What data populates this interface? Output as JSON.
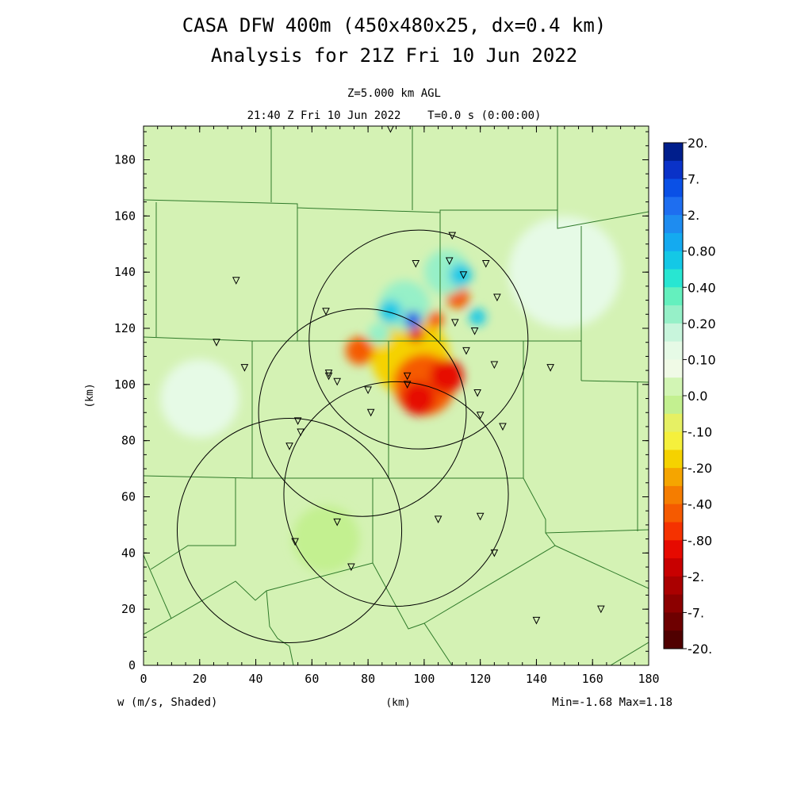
{
  "title": {
    "line1": "CASA DFW 400m (450x480x25, dx=0.4 km)",
    "line2": "Analysis for 21Z Fri 10 Jun 2022"
  },
  "subtitle": {
    "level": "Z=5.000 km AGL",
    "time": "21:40 Z Fri 10 Jun 2022    T=0.0 s (0:00:00)"
  },
  "axes": {
    "x_ticks": [
      "0",
      "20",
      "40",
      "60",
      "80",
      "100",
      "120",
      "140",
      "160",
      "180"
    ],
    "y_ticks": [
      "0",
      "20",
      "40",
      "60",
      "80",
      "100",
      "120",
      "140",
      "160",
      "180"
    ],
    "x_unit": "(km)",
    "y_unit": "(km)",
    "xlim": [
      0,
      180
    ],
    "ylim": [
      0,
      192
    ]
  },
  "footer": {
    "variable": "w (m/s, Shaded)",
    "minmax": "Min=-1.68 Max=1.18"
  },
  "colorbar": {
    "labels": [
      "20.",
      "7.",
      "2.",
      "0.80",
      "0.40",
      "0.20",
      "0.10",
      "0.0",
      "-.10",
      "-.20",
      "-.40",
      "-.80",
      "-2.",
      "-7.",
      "-20."
    ],
    "colors": [
      "#001e8c",
      "#0a32c8",
      "#0a50e6",
      "#1e6ef0",
      "#1e8cf0",
      "#14aaf0",
      "#14c8e6",
      "#28e6d2",
      "#64f0be",
      "#96f0c8",
      "#c8f5dc",
      "#e6fae6",
      "#f0fae6",
      "#d2f5b4",
      "#c3f090",
      "#e6f064",
      "#f5f03c",
      "#f5d200",
      "#f5a500",
      "#f57d00",
      "#f55a00",
      "#f53200",
      "#e60a00",
      "#c80000",
      "#aa0000",
      "#8c0000",
      "#6e0000",
      "#500000"
    ],
    "background_color": "#d4f2b4"
  },
  "radar_circles": [
    {
      "cx": 78,
      "cy": 90,
      "r": 37
    },
    {
      "cx": 98,
      "cy": 116,
      "r": 39
    },
    {
      "cx": 90,
      "cy": 61,
      "r": 40
    },
    {
      "cx": 52,
      "cy": 48,
      "r": 40
    }
  ],
  "stations": [
    [
      88,
      191
    ],
    [
      110,
      153
    ],
    [
      97,
      143
    ],
    [
      109,
      144
    ],
    [
      114,
      139
    ],
    [
      122,
      143
    ],
    [
      126,
      131
    ],
    [
      33,
      137
    ],
    [
      65,
      126
    ],
    [
      111,
      122
    ],
    [
      118,
      119
    ],
    [
      26,
      115
    ],
    [
      115,
      112
    ],
    [
      125,
      107
    ],
    [
      145,
      106
    ],
    [
      36,
      106
    ],
    [
      66,
      104
    ],
    [
      66,
      103
    ],
    [
      69,
      101
    ],
    [
      94,
      103
    ],
    [
      94,
      100
    ],
    [
      80,
      98
    ],
    [
      119,
      97
    ],
    [
      81,
      90
    ],
    [
      120,
      89
    ],
    [
      128,
      85
    ],
    [
      55,
      87
    ],
    [
      56,
      83
    ],
    [
      52,
      78
    ],
    [
      69,
      51
    ],
    [
      105,
      52
    ],
    [
      120,
      53
    ],
    [
      54,
      44
    ],
    [
      125,
      40
    ],
    [
      74,
      35
    ],
    [
      140,
      16
    ],
    [
      163,
      20
    ]
  ],
  "shade_blobs": [
    {
      "x": 95,
      "y": 110,
      "r": 14,
      "v": "neg-weak"
    },
    {
      "x": 100,
      "y": 100,
      "r": 11,
      "v": "neg-mod"
    },
    {
      "x": 98,
      "y": 95,
      "r": 6,
      "v": "neg-strong"
    },
    {
      "x": 108,
      "y": 103,
      "r": 6,
      "v": "neg-strong"
    },
    {
      "x": 77,
      "y": 112,
      "r": 5,
      "v": "neg-mod"
    },
    {
      "x": 97,
      "y": 118,
      "r": 3,
      "v": "neg-strong"
    },
    {
      "x": 104,
      "y": 123,
      "r": 3,
      "v": "neg-mod"
    },
    {
      "x": 112,
      "y": 131,
      "r": 4,
      "v": "neg-mod"
    },
    {
      "x": 93,
      "y": 128,
      "r": 9,
      "v": "pos-weak"
    },
    {
      "x": 108,
      "y": 140,
      "r": 8,
      "v": "pos-weak"
    },
    {
      "x": 96,
      "y": 123,
      "r": 3,
      "v": "pos-strong"
    },
    {
      "x": 88,
      "y": 126,
      "r": 4,
      "v": "pos-mod"
    },
    {
      "x": 113,
      "y": 139,
      "r": 4,
      "v": "pos-mod"
    },
    {
      "x": 84,
      "y": 118,
      "r": 4,
      "v": "pos-weak"
    },
    {
      "x": 119,
      "y": 124,
      "r": 3,
      "v": "pos-mod"
    },
    {
      "x": 65,
      "y": 45,
      "r": 12,
      "v": "neg-faint"
    },
    {
      "x": 20,
      "y": 95,
      "r": 14,
      "v": "pos-faint"
    },
    {
      "x": 150,
      "y": 140,
      "r": 20,
      "v": "pos-faint"
    }
  ]
}
